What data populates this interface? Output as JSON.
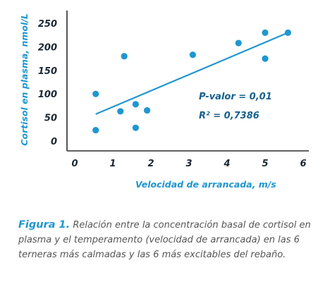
{
  "chart_data": {
    "type": "scatter",
    "xlabel": "Velocidad de arrancada, m/s",
    "ylabel": "Cortisol en plasma, nmol/L",
    "xlim": [
      0,
      6
    ],
    "ylim": [
      0,
      250
    ],
    "x_ticks": [
      0,
      1,
      2,
      3,
      4,
      5,
      6
    ],
    "y_ticks": [
      0,
      50,
      100,
      150,
      200,
      250
    ],
    "grid": false,
    "legend": "none",
    "marker_color": "#1f97cf",
    "line_color": "#1f97cf",
    "points": [
      {
        "x": 0.55,
        "y": 100
      },
      {
        "x": 0.55,
        "y": 23
      },
      {
        "x": 1.2,
        "y": 63
      },
      {
        "x": 1.3,
        "y": 180
      },
      {
        "x": 1.6,
        "y": 78
      },
      {
        "x": 1.6,
        "y": 28
      },
      {
        "x": 1.9,
        "y": 65
      },
      {
        "x": 3.1,
        "y": 183
      },
      {
        "x": 4.3,
        "y": 208
      },
      {
        "x": 5.0,
        "y": 230
      },
      {
        "x": 5.0,
        "y": 175
      },
      {
        "x": 5.6,
        "y": 230
      }
    ],
    "trendline": {
      "x": [
        0.55,
        5.6
      ],
      "y": [
        57,
        230
      ]
    },
    "annotations": {
      "p_value": "P-valor = 0,01",
      "r2": "R² = 0,7386"
    }
  },
  "caption": {
    "label": "Figura 1.",
    "text": "Relación entre la concentración basal de cortisol en plasma y el temperamento (velocidad de arrancada) en las 6 terneras más calmadas y las 6 más excitables del rebaño."
  }
}
